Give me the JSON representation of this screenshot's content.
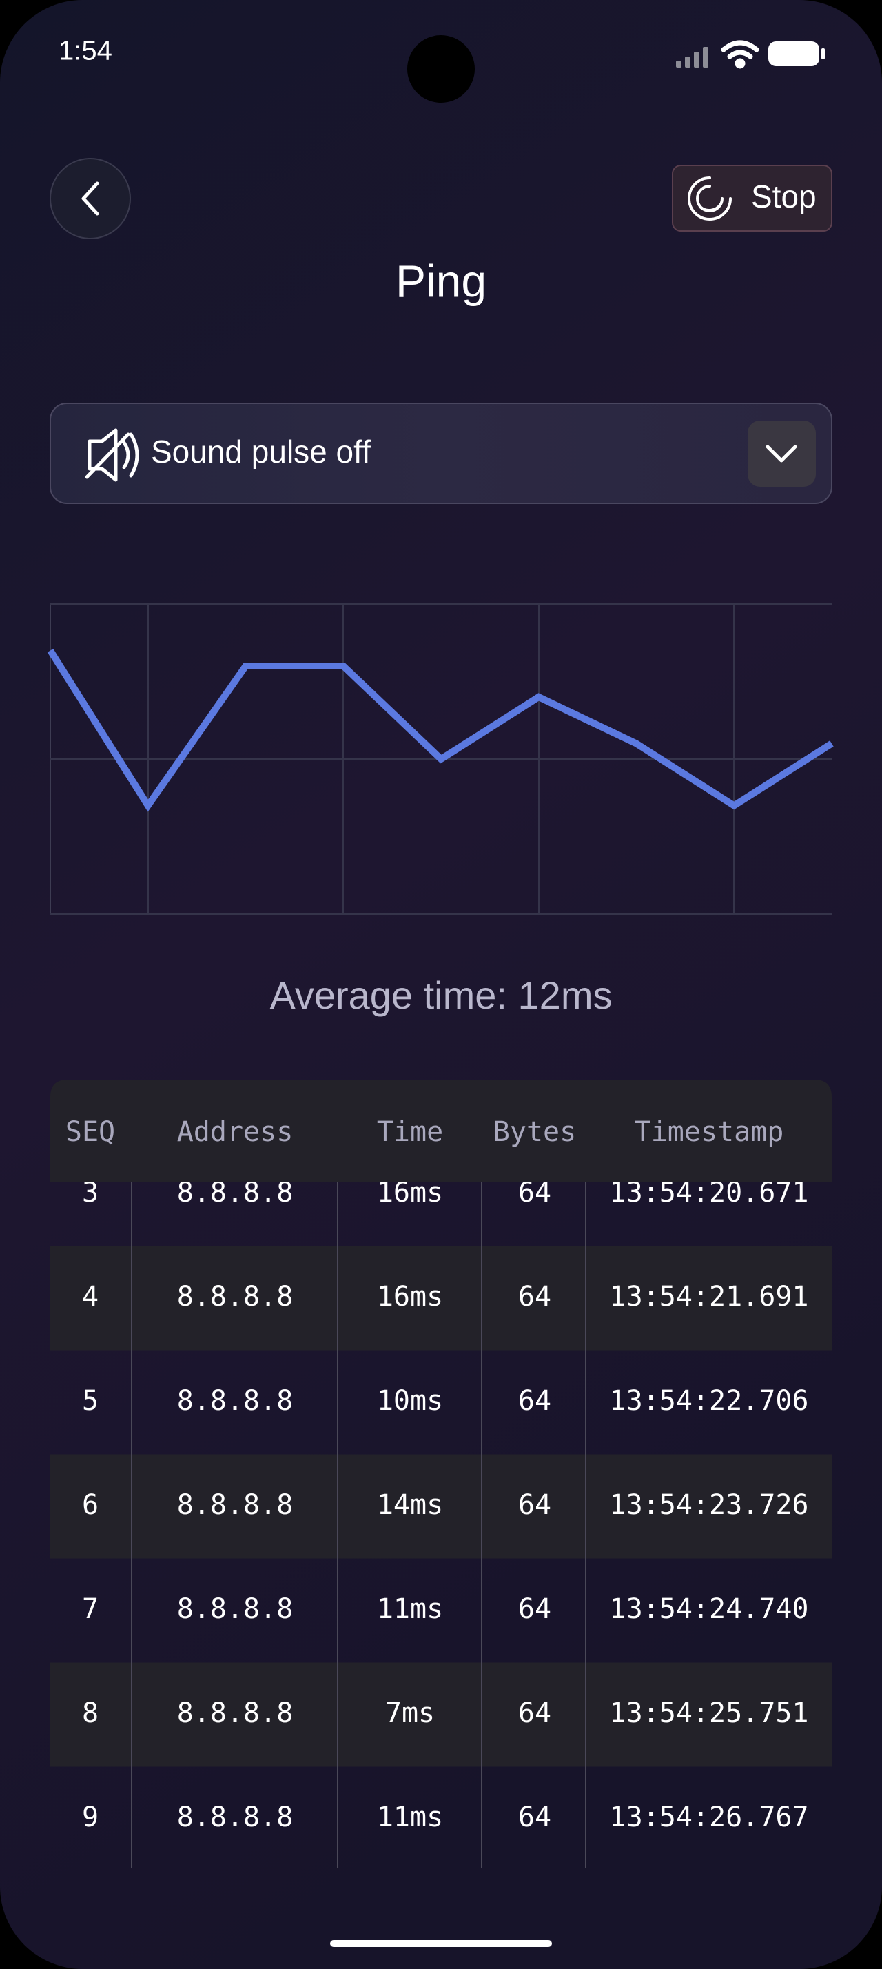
{
  "status_bar": {
    "time": "1:54"
  },
  "header": {
    "title": "Ping",
    "stop_button": "Stop"
  },
  "sound_selector": {
    "label": "Sound pulse off"
  },
  "chart_data": {
    "type": "line",
    "categories": [
      null,
      null,
      null,
      null,
      null,
      null,
      null,
      null,
      null
    ],
    "values": [
      17,
      7,
      16,
      16,
      10,
      14,
      11,
      7,
      11
    ],
    "color": "#5b79e0",
    "ylim": [
      0,
      20
    ],
    "yticks": [
      0,
      10,
      20
    ],
    "grid": true
  },
  "average_time": "Average time: 12ms",
  "table": {
    "columns": [
      "SEQ",
      "Address",
      "Time",
      "Bytes",
      "Timestamp"
    ],
    "rows": [
      [
        "3",
        "8.8.8.8",
        "16ms",
        "64",
        "13:54:20.671"
      ],
      [
        "4",
        "8.8.8.8",
        "16ms",
        "64",
        "13:54:21.691"
      ],
      [
        "5",
        "8.8.8.8",
        "10ms",
        "64",
        "13:54:22.706"
      ],
      [
        "6",
        "8.8.8.8",
        "14ms",
        "64",
        "13:54:23.726"
      ],
      [
        "7",
        "8.8.8.8",
        "11ms",
        "64",
        "13:54:24.740"
      ],
      [
        "8",
        "8.8.8.8",
        "7ms",
        "64",
        "13:54:25.751"
      ],
      [
        "9",
        "8.8.8.8",
        "11ms",
        "64",
        "13:54:26.767"
      ]
    ]
  }
}
